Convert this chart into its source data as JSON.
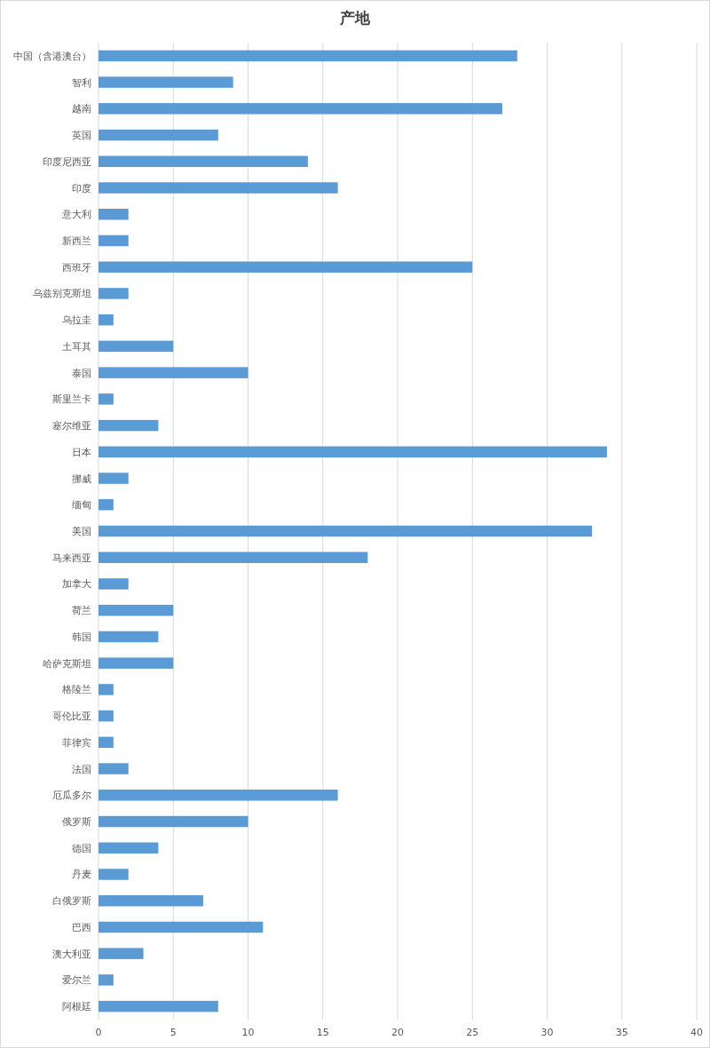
{
  "chart_data": {
    "type": "bar",
    "orientation": "horizontal",
    "title": "产地",
    "categories": [
      "中国（含港澳台）",
      "智利",
      "越南",
      "英国",
      "印度尼西亚",
      "印度",
      "意大利",
      "新西兰",
      "西班牙",
      "乌兹别克斯坦",
      "乌拉圭",
      "土耳其",
      "泰国",
      "斯里兰卡",
      "塞尔维亚",
      "日本",
      "挪威",
      "缅甸",
      "美国",
      "马来西亚",
      "加拿大",
      "荷兰",
      "韩国",
      "哈萨克斯坦",
      "格陵兰",
      "哥伦比亚",
      "菲律宾",
      "法国",
      "厄瓜多尔",
      "俄罗斯",
      "德国",
      "丹麦",
      "白俄罗斯",
      "巴西",
      "澳大利亚",
      "爱尔兰",
      "阿根廷"
    ],
    "values": [
      28,
      9,
      27,
      8,
      14,
      16,
      2,
      2,
      25,
      2,
      1,
      5,
      10,
      1,
      4,
      34,
      2,
      1,
      33,
      18,
      2,
      5,
      4,
      5,
      1,
      1,
      1,
      2,
      16,
      10,
      4,
      2,
      7,
      11,
      3,
      1,
      8
    ],
    "color": "#5b9bd5",
    "xlim": [
      0,
      40
    ],
    "xticks": [
      0,
      5,
      10,
      15,
      20,
      25,
      30,
      35,
      40
    ],
    "grid": "x"
  }
}
